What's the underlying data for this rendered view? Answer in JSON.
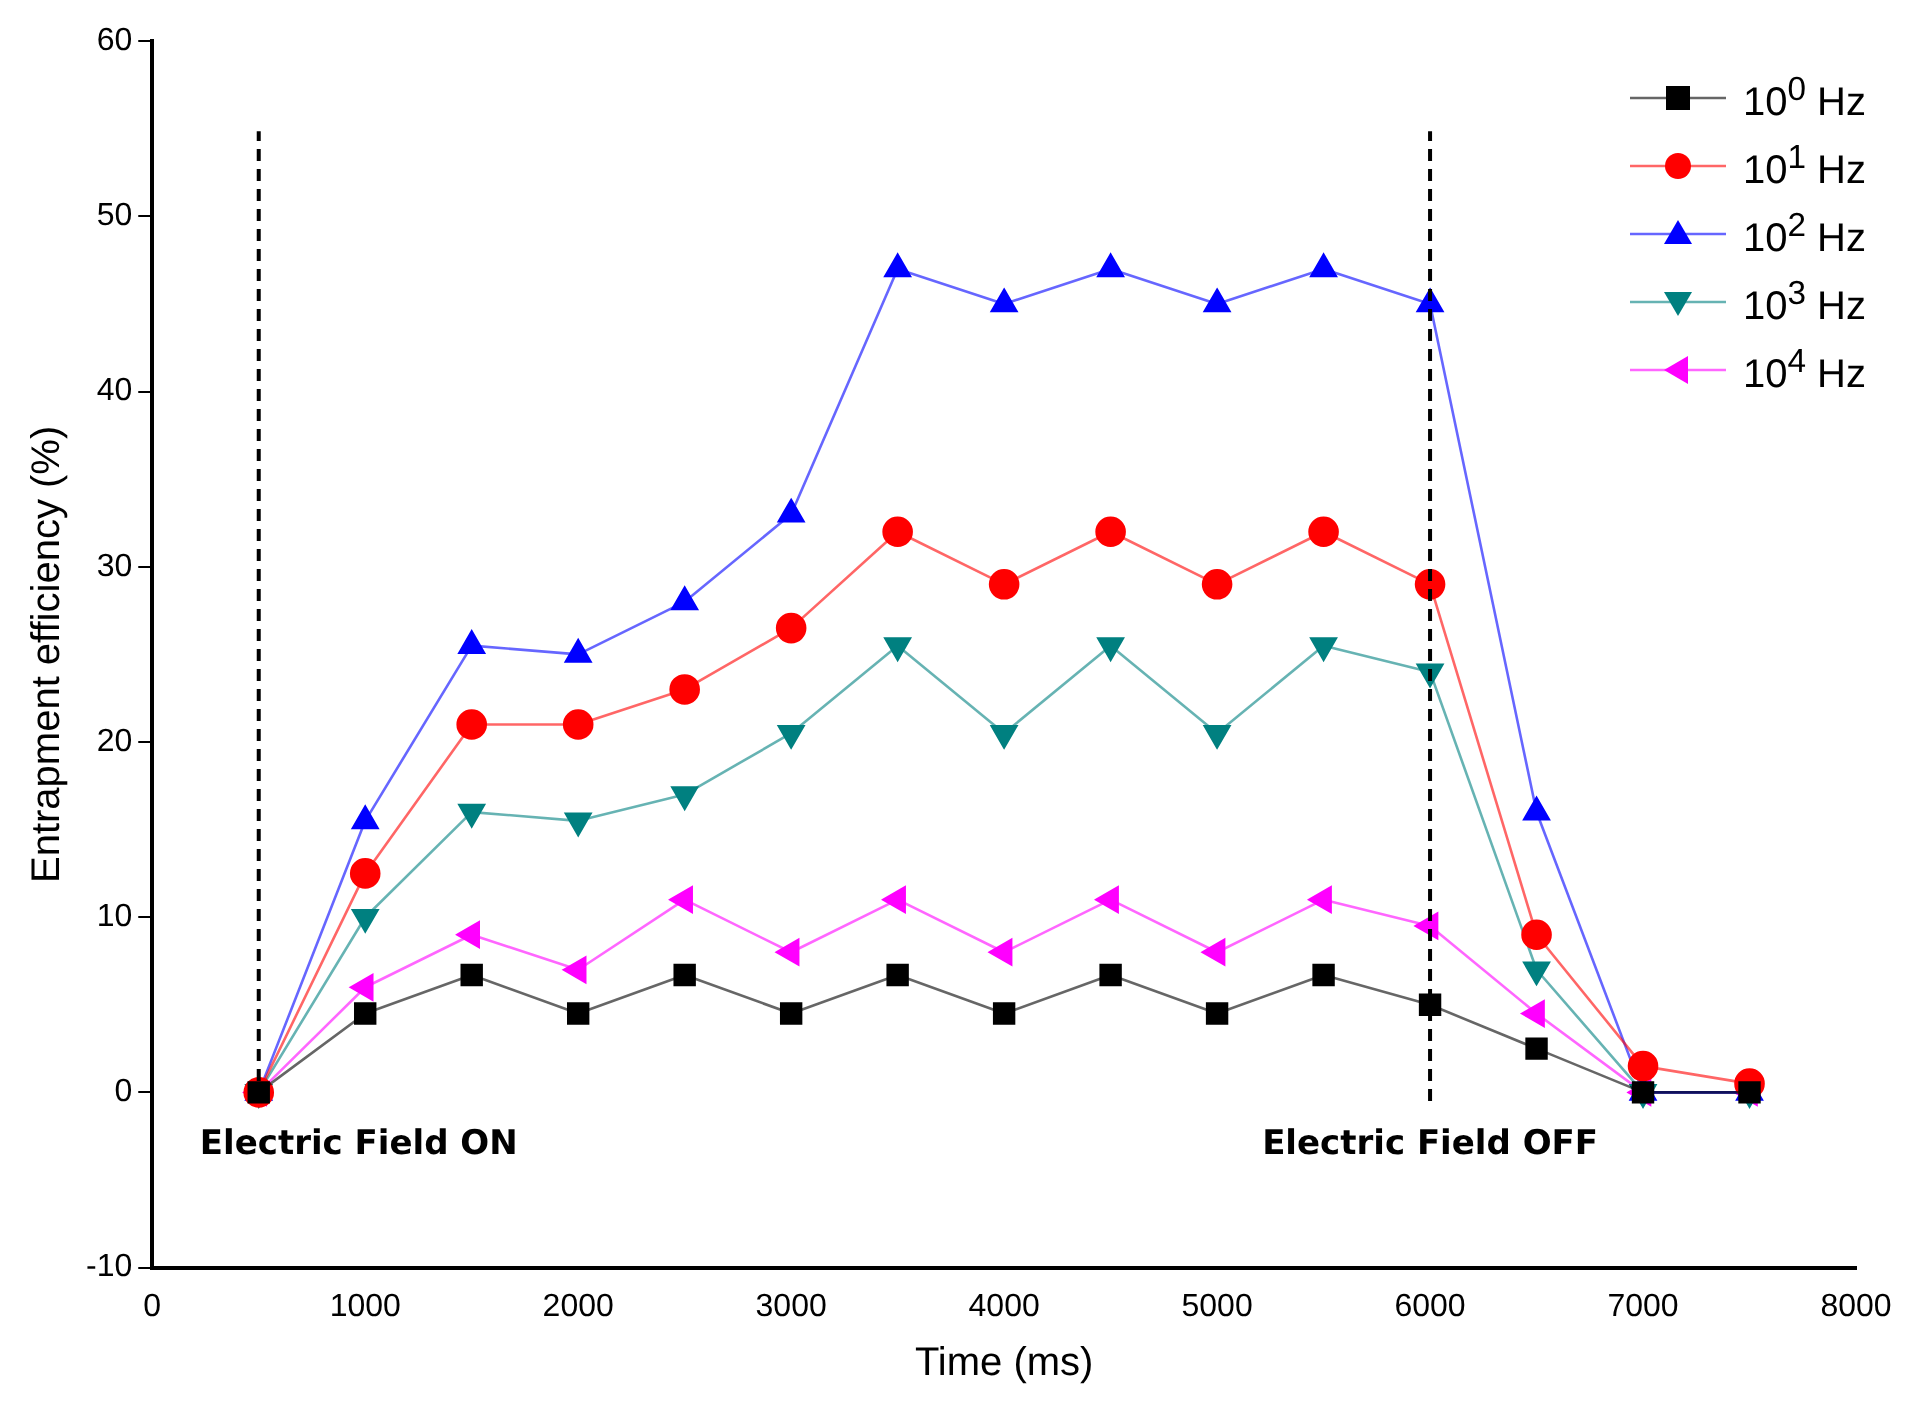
{
  "chart_data": {
    "type": "line",
    "xlabel": "Time (ms)",
    "ylabel": "Entrapment efficiency (%)",
    "x": [
      500,
      1000,
      1500,
      2000,
      2500,
      3000,
      3500,
      4000,
      4500,
      5000,
      5500,
      6000,
      6500,
      7000,
      7500
    ],
    "series": [
      {
        "name": "10$^{0}$ Hz",
        "color": "#000000",
        "marker": "square",
        "values": [
          0,
          4.5,
          6.7,
          4.5,
          6.7,
          4.5,
          6.7,
          4.5,
          6.7,
          4.5,
          6.7,
          5,
          2.5,
          0,
          0
        ]
      },
      {
        "name": "10$^{1}$ Hz",
        "color": "#ff0000",
        "marker": "circle",
        "values": [
          0,
          12.5,
          21,
          21,
          23,
          26.5,
          32,
          29,
          32,
          29,
          32,
          29,
          9,
          1.5,
          0.5
        ]
      },
      {
        "name": "10$^{2}$ Hz",
        "color": "#0000ff",
        "marker": "triangle",
        "values": [
          0,
          15.5,
          25.5,
          25,
          28,
          33,
          47,
          45,
          47,
          45,
          47,
          45,
          16,
          0,
          0
        ]
      },
      {
        "name": "10$^{3}$ Hz",
        "color": "#008080",
        "marker": "triangle-down",
        "values": [
          0,
          10,
          16,
          15.5,
          17,
          20.5,
          25.5,
          20.5,
          25.5,
          20.5,
          25.5,
          24,
          7,
          0,
          0
        ]
      },
      {
        "name": "10$^{4}$ Hz",
        "color": "#ff00ff",
        "marker": "triangle-left",
        "values": [
          0,
          6,
          9,
          7,
          11,
          8,
          11,
          8,
          11,
          8,
          11,
          9.5,
          4.5,
          0,
          0
        ]
      }
    ],
    "xlim": [
      0,
      8000
    ],
    "xticks": [
      0,
      1000,
      2000,
      3000,
      4000,
      5000,
      6000,
      7000,
      8000
    ],
    "ylim": [
      -10,
      60
    ],
    "yticks": [
      -10,
      0,
      10,
      20,
      30,
      40,
      50,
      60
    ],
    "ref_lines": [
      {
        "axis": "x",
        "value": 500,
        "label": "Electric Field ON",
        "color": "#000000",
        "line_style": "dashed"
      },
      {
        "axis": "x",
        "value": 6000,
        "label": "Electric Field OFF",
        "color": "#000000",
        "line_style": "dashed"
      }
    ],
    "grid": false,
    "legend": "top right",
    "line_style": "solid"
  }
}
